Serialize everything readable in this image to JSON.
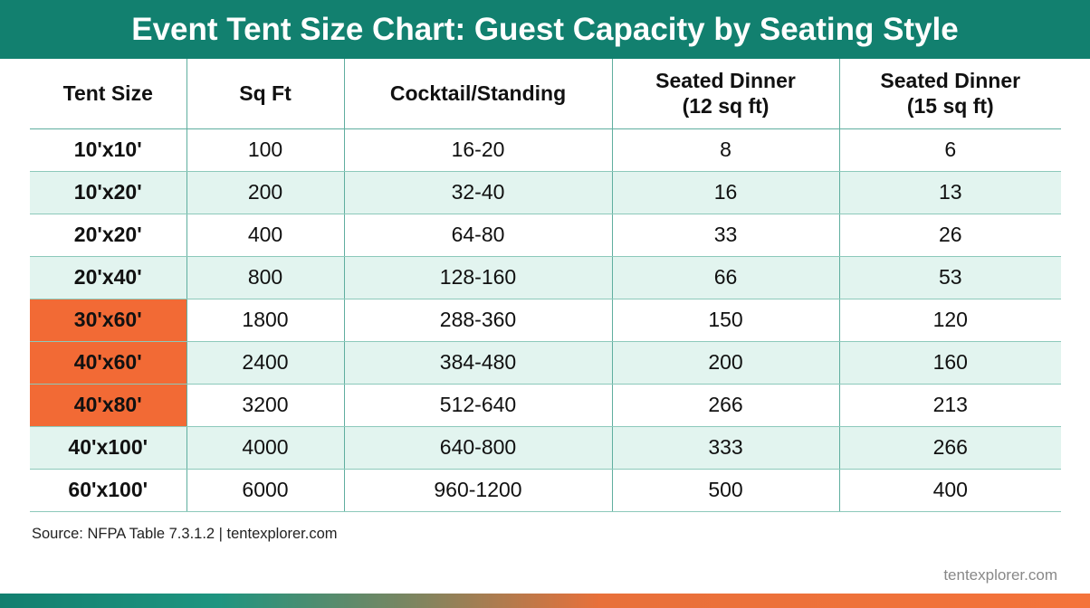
{
  "title": "Event Tent Size Chart: Guest Capacity by Seating Style",
  "colors": {
    "header": "#12806f",
    "stripe": "#e2f4ef",
    "highlight": "#f26a35"
  },
  "chart_data": {
    "type": "table",
    "title": "Event Tent Size Chart: Guest Capacity by Seating Style",
    "columns": [
      "Tent Size",
      "Sq Ft",
      "Cocktail/Standing",
      "Seated Dinner\n(12 sq ft)",
      "Seated Dinner\n(15 sq ft)"
    ],
    "rows": [
      {
        "cells": [
          "10'x10'",
          "100",
          "16-20",
          "8",
          "6"
        ],
        "highlight": false
      },
      {
        "cells": [
          "10'x20'",
          "200",
          "32-40",
          "16",
          "13"
        ],
        "highlight": false
      },
      {
        "cells": [
          "20'x20'",
          "400",
          "64-80",
          "33",
          "26"
        ],
        "highlight": false
      },
      {
        "cells": [
          "20'x40'",
          "800",
          "128-160",
          "66",
          "53"
        ],
        "highlight": false
      },
      {
        "cells": [
          "30'x60'",
          "1800",
          "288-360",
          "150",
          "120"
        ],
        "highlight": true
      },
      {
        "cells": [
          "40'x60'",
          "2400",
          "384-480",
          "200",
          "160"
        ],
        "highlight": true
      },
      {
        "cells": [
          "40'x80'",
          "3200",
          "512-640",
          "266",
          "213"
        ],
        "highlight": true
      },
      {
        "cells": [
          "40'x100'",
          "4000",
          "640-800",
          "333",
          "266"
        ],
        "highlight": false
      },
      {
        "cells": [
          "60'x100'",
          "6000",
          "960-1200",
          "500",
          "400"
        ],
        "highlight": false
      }
    ]
  },
  "source": "Source: NFPA Table 7.3.1.2 | tentexplorer.com",
  "watermark": "tentexplorer.com"
}
